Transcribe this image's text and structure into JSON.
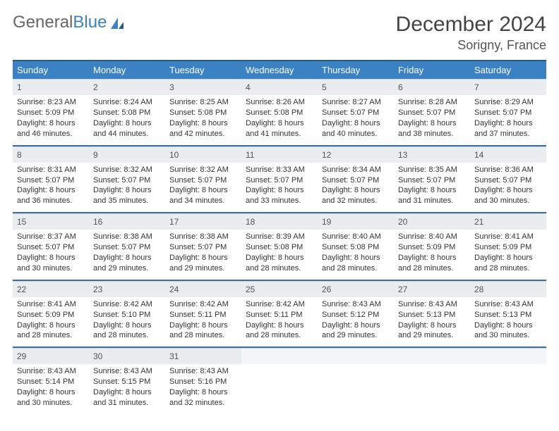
{
  "logo": {
    "word1": "General",
    "word2": "Blue"
  },
  "title": "December 2024",
  "location": "Sorigny, France",
  "colors": {
    "header_bg": "#3b82c4",
    "header_border_top": "#2a5a87",
    "row_divider": "#3b6fa0",
    "daynum_bg": "#e9edef",
    "text": "#333333"
  },
  "weekdays": [
    "Sunday",
    "Monday",
    "Tuesday",
    "Wednesday",
    "Thursday",
    "Friday",
    "Saturday"
  ],
  "weeks": [
    [
      {
        "n": "1",
        "sr": "Sunrise: 8:23 AM",
        "ss": "Sunset: 5:09 PM",
        "d1": "Daylight: 8 hours",
        "d2": "and 46 minutes."
      },
      {
        "n": "2",
        "sr": "Sunrise: 8:24 AM",
        "ss": "Sunset: 5:08 PM",
        "d1": "Daylight: 8 hours",
        "d2": "and 44 minutes."
      },
      {
        "n": "3",
        "sr": "Sunrise: 8:25 AM",
        "ss": "Sunset: 5:08 PM",
        "d1": "Daylight: 8 hours",
        "d2": "and 42 minutes."
      },
      {
        "n": "4",
        "sr": "Sunrise: 8:26 AM",
        "ss": "Sunset: 5:08 PM",
        "d1": "Daylight: 8 hours",
        "d2": "and 41 minutes."
      },
      {
        "n": "5",
        "sr": "Sunrise: 8:27 AM",
        "ss": "Sunset: 5:07 PM",
        "d1": "Daylight: 8 hours",
        "d2": "and 40 minutes."
      },
      {
        "n": "6",
        "sr": "Sunrise: 8:28 AM",
        "ss": "Sunset: 5:07 PM",
        "d1": "Daylight: 8 hours",
        "d2": "and 38 minutes."
      },
      {
        "n": "7",
        "sr": "Sunrise: 8:29 AM",
        "ss": "Sunset: 5:07 PM",
        "d1": "Daylight: 8 hours",
        "d2": "and 37 minutes."
      }
    ],
    [
      {
        "n": "8",
        "sr": "Sunrise: 8:31 AM",
        "ss": "Sunset: 5:07 PM",
        "d1": "Daylight: 8 hours",
        "d2": "and 36 minutes."
      },
      {
        "n": "9",
        "sr": "Sunrise: 8:32 AM",
        "ss": "Sunset: 5:07 PM",
        "d1": "Daylight: 8 hours",
        "d2": "and 35 minutes."
      },
      {
        "n": "10",
        "sr": "Sunrise: 8:32 AM",
        "ss": "Sunset: 5:07 PM",
        "d1": "Daylight: 8 hours",
        "d2": "and 34 minutes."
      },
      {
        "n": "11",
        "sr": "Sunrise: 8:33 AM",
        "ss": "Sunset: 5:07 PM",
        "d1": "Daylight: 8 hours",
        "d2": "and 33 minutes."
      },
      {
        "n": "12",
        "sr": "Sunrise: 8:34 AM",
        "ss": "Sunset: 5:07 PM",
        "d1": "Daylight: 8 hours",
        "d2": "and 32 minutes."
      },
      {
        "n": "13",
        "sr": "Sunrise: 8:35 AM",
        "ss": "Sunset: 5:07 PM",
        "d1": "Daylight: 8 hours",
        "d2": "and 31 minutes."
      },
      {
        "n": "14",
        "sr": "Sunrise: 8:36 AM",
        "ss": "Sunset: 5:07 PM",
        "d1": "Daylight: 8 hours",
        "d2": "and 30 minutes."
      }
    ],
    [
      {
        "n": "15",
        "sr": "Sunrise: 8:37 AM",
        "ss": "Sunset: 5:07 PM",
        "d1": "Daylight: 8 hours",
        "d2": "and 30 minutes."
      },
      {
        "n": "16",
        "sr": "Sunrise: 8:38 AM",
        "ss": "Sunset: 5:07 PM",
        "d1": "Daylight: 8 hours",
        "d2": "and 29 minutes."
      },
      {
        "n": "17",
        "sr": "Sunrise: 8:38 AM",
        "ss": "Sunset: 5:07 PM",
        "d1": "Daylight: 8 hours",
        "d2": "and 29 minutes."
      },
      {
        "n": "18",
        "sr": "Sunrise: 8:39 AM",
        "ss": "Sunset: 5:08 PM",
        "d1": "Daylight: 8 hours",
        "d2": "and 28 minutes."
      },
      {
        "n": "19",
        "sr": "Sunrise: 8:40 AM",
        "ss": "Sunset: 5:08 PM",
        "d1": "Daylight: 8 hours",
        "d2": "and 28 minutes."
      },
      {
        "n": "20",
        "sr": "Sunrise: 8:40 AM",
        "ss": "Sunset: 5:09 PM",
        "d1": "Daylight: 8 hours",
        "d2": "and 28 minutes."
      },
      {
        "n": "21",
        "sr": "Sunrise: 8:41 AM",
        "ss": "Sunset: 5:09 PM",
        "d1": "Daylight: 8 hours",
        "d2": "and 28 minutes."
      }
    ],
    [
      {
        "n": "22",
        "sr": "Sunrise: 8:41 AM",
        "ss": "Sunset: 5:09 PM",
        "d1": "Daylight: 8 hours",
        "d2": "and 28 minutes."
      },
      {
        "n": "23",
        "sr": "Sunrise: 8:42 AM",
        "ss": "Sunset: 5:10 PM",
        "d1": "Daylight: 8 hours",
        "d2": "and 28 minutes."
      },
      {
        "n": "24",
        "sr": "Sunrise: 8:42 AM",
        "ss": "Sunset: 5:11 PM",
        "d1": "Daylight: 8 hours",
        "d2": "and 28 minutes."
      },
      {
        "n": "25",
        "sr": "Sunrise: 8:42 AM",
        "ss": "Sunset: 5:11 PM",
        "d1": "Daylight: 8 hours",
        "d2": "and 28 minutes."
      },
      {
        "n": "26",
        "sr": "Sunrise: 8:43 AM",
        "ss": "Sunset: 5:12 PM",
        "d1": "Daylight: 8 hours",
        "d2": "and 29 minutes."
      },
      {
        "n": "27",
        "sr": "Sunrise: 8:43 AM",
        "ss": "Sunset: 5:13 PM",
        "d1": "Daylight: 8 hours",
        "d2": "and 29 minutes."
      },
      {
        "n": "28",
        "sr": "Sunrise: 8:43 AM",
        "ss": "Sunset: 5:13 PM",
        "d1": "Daylight: 8 hours",
        "d2": "and 30 minutes."
      }
    ],
    [
      {
        "n": "29",
        "sr": "Sunrise: 8:43 AM",
        "ss": "Sunset: 5:14 PM",
        "d1": "Daylight: 8 hours",
        "d2": "and 30 minutes."
      },
      {
        "n": "30",
        "sr": "Sunrise: 8:43 AM",
        "ss": "Sunset: 5:15 PM",
        "d1": "Daylight: 8 hours",
        "d2": "and 31 minutes."
      },
      {
        "n": "31",
        "sr": "Sunrise: 8:43 AM",
        "ss": "Sunset: 5:16 PM",
        "d1": "Daylight: 8 hours",
        "d2": "and 32 minutes."
      },
      {
        "empty": true
      },
      {
        "empty": true
      },
      {
        "empty": true
      },
      {
        "empty": true
      }
    ]
  ]
}
